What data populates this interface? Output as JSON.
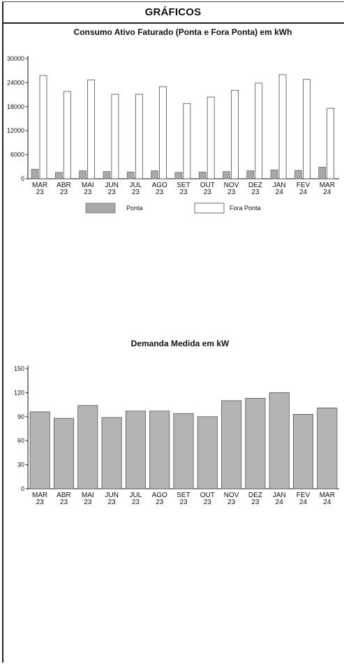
{
  "header": {
    "title": "GRÁFICOS"
  },
  "colors": {
    "ponta_fill": "#a8a8a8",
    "fora_ponta_fill": "#ffffff",
    "demanda_fill": "#b4b4b4",
    "axis": "#111111"
  },
  "chart_data": [
    {
      "type": "bar",
      "title": "Consumo Ativo Faturado (Ponta e Fora Ponta) em kWh",
      "categories": [
        [
          "MAR",
          "23"
        ],
        [
          "ABR",
          "23"
        ],
        [
          "MAI",
          "23"
        ],
        [
          "JUN",
          "23"
        ],
        [
          "JUL",
          "23"
        ],
        [
          "AGO",
          "23"
        ],
        [
          "SET",
          "23"
        ],
        [
          "OUT",
          "23"
        ],
        [
          "NOV",
          "23"
        ],
        [
          "DEZ",
          "23"
        ],
        [
          "JAN",
          "24"
        ],
        [
          "FEV",
          "24"
        ],
        [
          "MAR",
          "24"
        ]
      ],
      "series": [
        {
          "name": "Ponta",
          "values": [
            2400,
            1600,
            2000,
            1800,
            1700,
            2000,
            1600,
            1700,
            1800,
            2000,
            2200,
            2100,
            2900
          ]
        },
        {
          "name": "Fora Ponta",
          "values": [
            25800,
            21800,
            24700,
            21100,
            21100,
            23000,
            18800,
            20400,
            22100,
            23900,
            26000,
            24800,
            17600
          ]
        }
      ],
      "yticks": [
        "0",
        "6000",
        "12000",
        "18000",
        "24000",
        "30000"
      ],
      "ylim": [
        0,
        30000
      ],
      "legend_position": "bottom"
    },
    {
      "type": "bar",
      "title": "Demanda Medida em kW",
      "categories": [
        [
          "MAR",
          "23"
        ],
        [
          "ABR",
          "23"
        ],
        [
          "MAI",
          "23"
        ],
        [
          "JUN",
          "23"
        ],
        [
          "JUL",
          "23"
        ],
        [
          "AGO",
          "23"
        ],
        [
          "SET",
          "23"
        ],
        [
          "OUT",
          "23"
        ],
        [
          "NOV",
          "23"
        ],
        [
          "DEZ",
          "23"
        ],
        [
          "JAN",
          "24"
        ],
        [
          "FEV",
          "24"
        ],
        [
          "MAR",
          "24"
        ]
      ],
      "series": [
        {
          "name": "",
          "values": [
            96,
            88,
            104,
            89,
            97,
            97,
            94,
            90,
            110,
            113,
            120,
            93,
            101
          ]
        }
      ],
      "yticks": [
        "0",
        "30",
        "60",
        "90",
        "120",
        "150"
      ],
      "ylim": [
        0,
        150
      ]
    }
  ]
}
